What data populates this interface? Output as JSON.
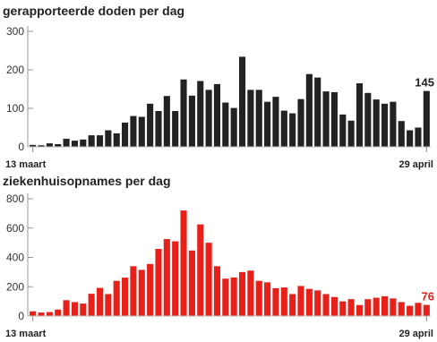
{
  "chart_data": [
    {
      "type": "bar",
      "title": "gerapporteerde doden per dag",
      "start_label": "13 maart",
      "end_label": "29 april",
      "last_value_label": "145",
      "yticks": [
        0,
        100,
        200,
        300
      ],
      "ylim": [
        0,
        300
      ],
      "color": "#222222",
      "values": [
        5,
        4,
        9,
        7,
        21,
        16,
        19,
        30,
        30,
        43,
        35,
        63,
        80,
        78,
        112,
        93,
        132,
        93,
        175,
        133,
        171,
        148,
        163,
        115,
        101,
        234,
        148,
        148,
        117,
        130,
        94,
        87,
        124,
        189,
        180,
        144,
        142,
        84,
        68,
        165,
        140,
        123,
        112,
        117,
        67,
        43,
        50,
        145
      ]
    },
    {
      "type": "bar",
      "title": "ziekenhuisopnames per dag",
      "start_label": "13 maart",
      "end_label": "29 april",
      "last_value_label": "76",
      "yticks": [
        0,
        200,
        400,
        600,
        800
      ],
      "ylim": [
        0,
        800
      ],
      "color": "#e8201a",
      "values": [
        32,
        24,
        27,
        44,
        108,
        95,
        85,
        152,
        192,
        150,
        240,
        262,
        340,
        315,
        355,
        458,
        525,
        510,
        720,
        447,
        625,
        500,
        340,
        255,
        263,
        300,
        310,
        240,
        230,
        190,
        195,
        150,
        205,
        185,
        175,
        150,
        130,
        100,
        115,
        75,
        115,
        125,
        135,
        120,
        95,
        70,
        90,
        76
      ]
    }
  ]
}
